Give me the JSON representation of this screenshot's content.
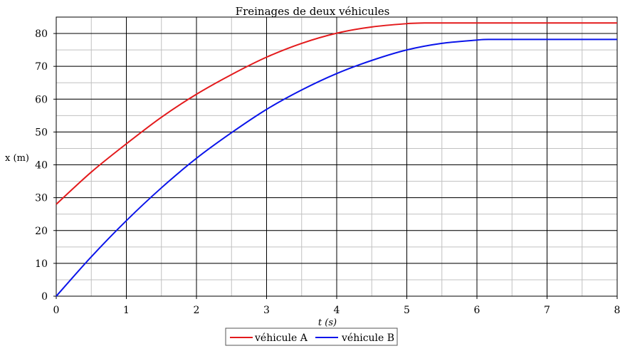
{
  "chart_data": {
    "type": "line",
    "title": "Freinages de deux véhicules",
    "xlabel": "t (s)",
    "ylabel": "x (m)",
    "xlim": [
      0,
      8
    ],
    "ylim": [
      0,
      85
    ],
    "x_ticks": [
      0,
      1,
      2,
      3,
      4,
      5,
      6,
      7,
      8
    ],
    "y_ticks": [
      0,
      10,
      20,
      30,
      40,
      50,
      60,
      70,
      80
    ],
    "x_minor_step": 0.5,
    "y_minor_step": 5,
    "grid": true,
    "legend_position": "bottom-center",
    "series": [
      {
        "name": "véhicule A",
        "color": "#e31a1c",
        "x": [
          0,
          0.5,
          1,
          1.5,
          2,
          2.5,
          3,
          3.5,
          4,
          4.5,
          5,
          5.25,
          6,
          7,
          8
        ],
        "y": [
          28,
          37.8,
          46.4,
          54.5,
          61.5,
          67.5,
          72.8,
          77,
          80.1,
          82,
          83,
          83.2,
          83.2,
          83.2,
          83.2
        ]
      },
      {
        "name": "véhicule B",
        "color": "#0a14ea",
        "x": [
          0,
          0.5,
          1,
          1.5,
          2,
          2.5,
          3,
          3.5,
          4,
          4.5,
          5,
          5.5,
          6,
          6.2,
          7,
          8
        ],
        "y": [
          0,
          12,
          23,
          33,
          42,
          49.8,
          56.9,
          62.8,
          67.8,
          71.8,
          75,
          77,
          78,
          78.2,
          78.2,
          78.2
        ]
      }
    ]
  }
}
